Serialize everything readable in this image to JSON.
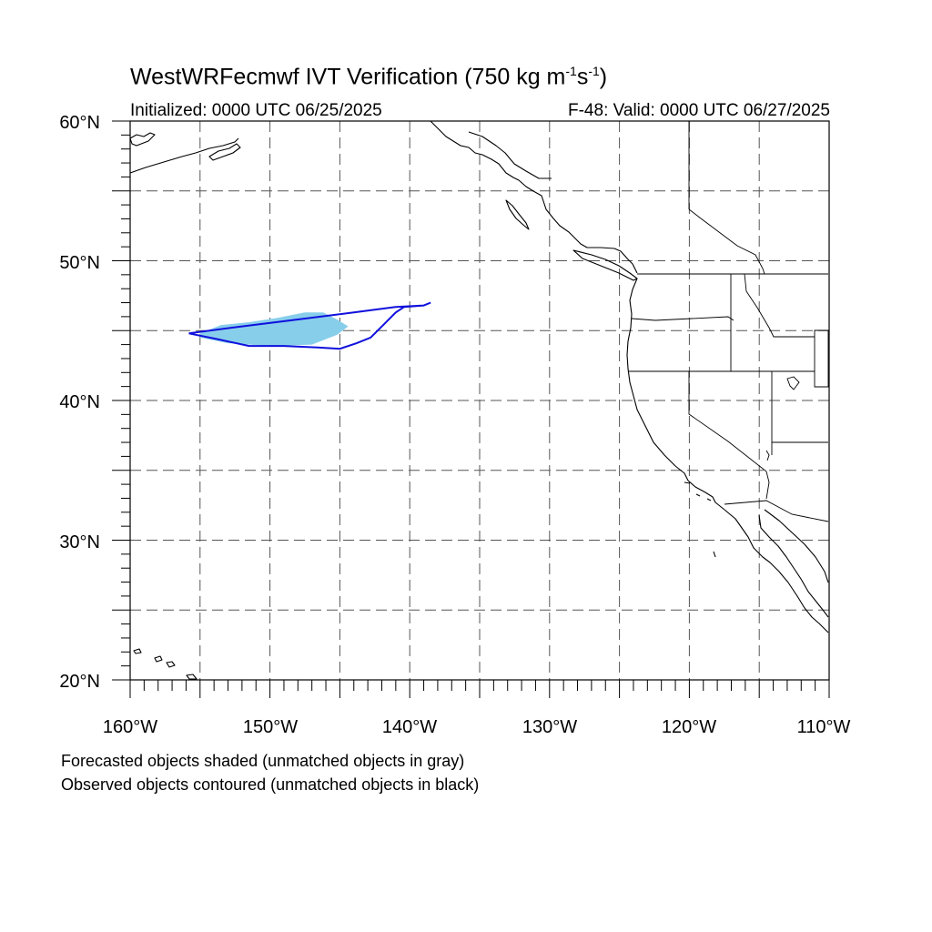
{
  "header": {
    "title_main": "WestWRFecmwf IVT Verification (750 kg m",
    "title_exp1": "-1",
    "title_mid": "s",
    "title_exp2": "-1",
    "title_end": ")",
    "initialized": "Initialized: 0000 UTC 06/25/2025",
    "valid": "F-48: Valid: 0000 UTC 06/27/2025"
  },
  "map": {
    "lon_range": [
      -160,
      -110
    ],
    "lat_range": [
      20,
      60
    ],
    "gridlines": "dashed",
    "lat_labels": [
      "60°N",
      "50°N",
      "40°N",
      "30°N",
      "20°N"
    ],
    "lon_labels": [
      "160°W",
      "150°W",
      "140°W",
      "130°W",
      "120°W",
      "110°W"
    ],
    "forecast_object": {
      "color": "#87CEEB",
      "points": [
        [
          -155,
          44.8
        ],
        [
          -153.5,
          45.4
        ],
        [
          -151.5,
          45.6
        ],
        [
          -149.5,
          45.9
        ],
        [
          -147.5,
          46.3
        ],
        [
          -146.2,
          46.3
        ],
        [
          -145.2,
          45.8
        ],
        [
          -144.4,
          45.3
        ],
        [
          -145.2,
          44.7
        ],
        [
          -147,
          44.0
        ],
        [
          -150,
          43.9
        ],
        [
          -153,
          44.1
        ],
        [
          -155,
          44.5
        ]
      ]
    },
    "observed_object": {
      "color": "#1010DD",
      "points": [
        [
          -155.8,
          44.8
        ],
        [
          -152,
          45.3
        ],
        [
          -148,
          45.8
        ],
        [
          -144,
          46.3
        ],
        [
          -141,
          46.7
        ],
        [
          -139,
          46.8
        ],
        [
          -138.5,
          47.0
        ],
        [
          -139,
          46.8
        ],
        [
          -140.4,
          46.7
        ],
        [
          -141,
          46.3
        ],
        [
          -141.8,
          45.5
        ],
        [
          -142.8,
          44.5
        ],
        [
          -143.8,
          44.1
        ],
        [
          -145,
          43.7
        ],
        [
          -146.6,
          43.8
        ],
        [
          -149,
          43.9
        ],
        [
          -151.5,
          43.9
        ],
        [
          -153.8,
          44.4
        ],
        [
          -155.8,
          44.8
        ]
      ]
    }
  },
  "footer": {
    "note1": "Forecasted objects shaded (unmatched objects in gray)",
    "note2": "Observed objects contoured (unmatched objects in black)"
  }
}
